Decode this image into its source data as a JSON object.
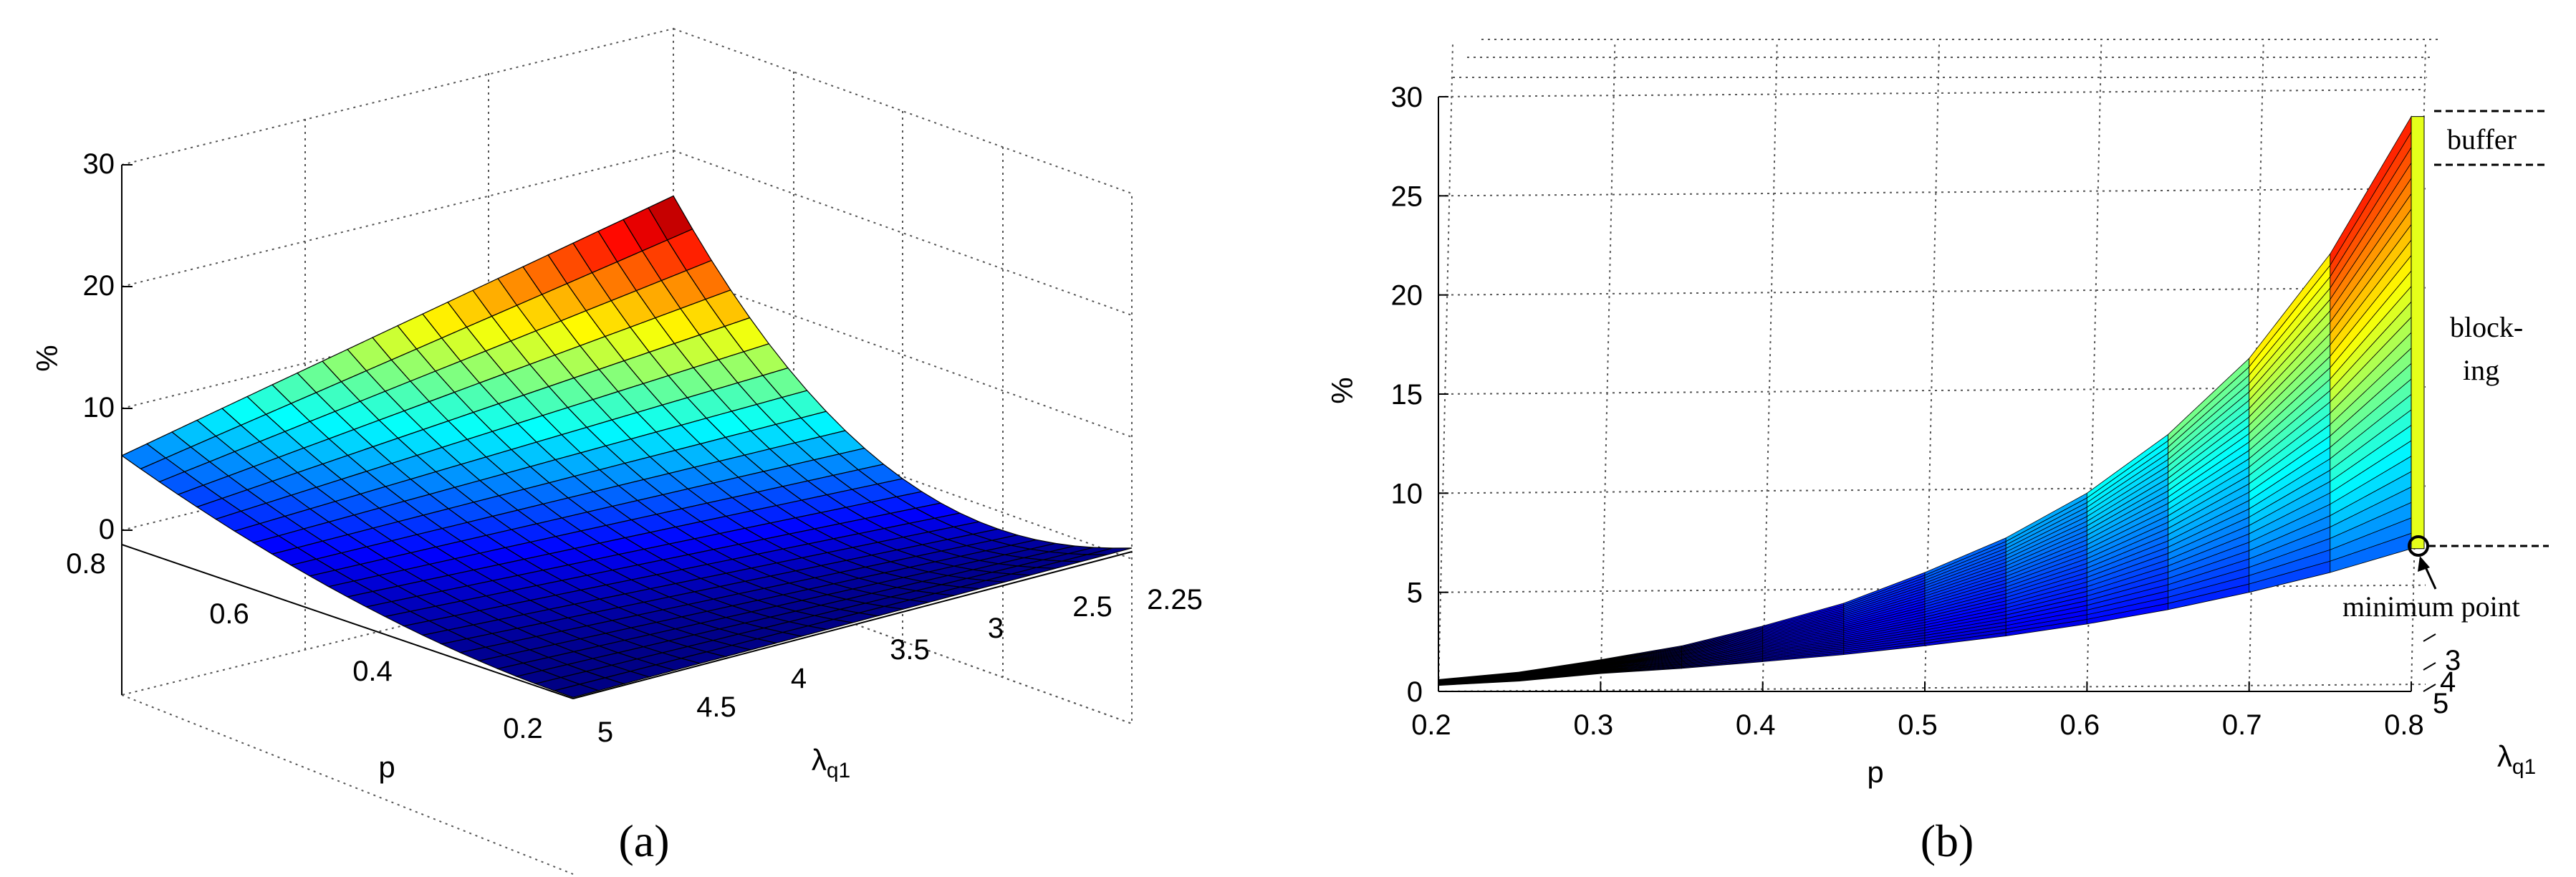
{
  "chart_data": [
    {
      "panel": "a",
      "type": "surface3d",
      "panel_label": "(a)",
      "xlabel": "p",
      "ylabel": "λq1",
      "zlabel": "%",
      "x_ticks": [
        "0.2",
        "0.4",
        "0.6",
        "0.8"
      ],
      "y_ticks": [
        "2.25",
        "2.5",
        "3",
        "3.5",
        "4",
        "4.5",
        "5"
      ],
      "z_ticks": [
        "0",
        "10",
        "20",
        "30"
      ],
      "xlim": [
        0.2,
        0.8
      ],
      "ylim": [
        2.25,
        5
      ],
      "zlim": [
        0,
        30
      ],
      "grid": true,
      "colormap": "jet",
      "corner_values": [
        {
          "p": 0.2,
          "lambda_q1": 2.25,
          "percent": 0.3
        },
        {
          "p": 0.2,
          "lambda_q1": 5,
          "percent": 0.1
        },
        {
          "p": 0.8,
          "lambda_q1": 2.25,
          "percent": 29.5
        },
        {
          "p": 0.8,
          "lambda_q1": 5,
          "percent": 7.2
        }
      ]
    },
    {
      "panel": "b",
      "type": "surface3d",
      "panel_label": "(b)",
      "xlabel": "p",
      "ylabel": "λq1",
      "zlabel": "%",
      "x_ticks": [
        "0.2",
        "0.3",
        "0.4",
        "0.5",
        "0.6",
        "0.7",
        "0.8"
      ],
      "y_ticks": [
        "3",
        "4",
        "5"
      ],
      "z_ticks": [
        "0",
        "5",
        "10",
        "15",
        "20",
        "25",
        "30"
      ],
      "xlim": [
        0.2,
        0.8
      ],
      "zlim": [
        0,
        30
      ],
      "grid": true,
      "colormap": "jet",
      "upper_edge": {
        "p": [
          0.2,
          0.3,
          0.4,
          0.5,
          0.6,
          0.7,
          0.8
        ],
        "percent": [
          0.6,
          1.6,
          3.3,
          6.0,
          10.0,
          16.8,
          29.0
        ]
      },
      "lower_edge": {
        "p": [
          0.2,
          0.3,
          0.4,
          0.5,
          0.6,
          0.7,
          0.8
        ],
        "percent": [
          0.3,
          0.9,
          1.5,
          2.3,
          3.4,
          5.0,
          7.2
        ]
      },
      "annotations": {
        "buffer": "buffer",
        "blocking_line1": "block-",
        "blocking_line2": "ing",
        "minimum_point": "minimum point"
      },
      "minimum_point": {
        "p": 0.8,
        "lambda_q1": 5,
        "percent": 7.2
      }
    }
  ]
}
